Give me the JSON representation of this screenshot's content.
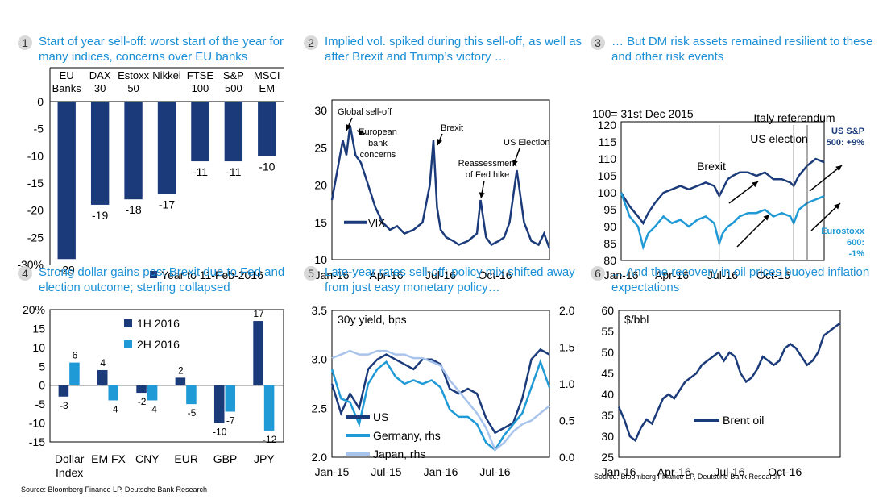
{
  "colors": {
    "dark": "#1b3a7a",
    "light": "#1f9ad6",
    "pale": "#a9c4ec",
    "title": "#1a8fd6"
  },
  "panels": [
    {
      "num": "1",
      "title": "Start of year sell-off: worst start of the year for many indices, concerns over EU banks"
    },
    {
      "num": "2",
      "title": "Implied vol. spiked during this sell-off, as well as after Brexit and Trump’s victory …"
    },
    {
      "num": "3",
      "title": "… But DM risk assets remained resilient to these and other risk events"
    },
    {
      "num": "4",
      "title": "Strong dollar gains post Brexit due to Fed and election outcome; sterling collapsed"
    },
    {
      "num": "5",
      "title": "Late-year rates sell-off:  policy mix shifted away from just easy monetary policy…"
    },
    {
      "num": "6",
      "title": "… And the recovery in oil prices buoyed inflation expectations"
    }
  ],
  "sources": {
    "left": "Source: Bloomberg Finance LP, Deutsche Bank Research",
    "right": "Source: Bloomberg Finance LP, Deutsche Bank Research"
  },
  "chart_data": [
    {
      "type": "bar",
      "categories": [
        [
          "EU",
          "Banks"
        ],
        [
          "DAX",
          "30"
        ],
        [
          "Estoxx",
          "50"
        ],
        [
          "Nikkei"
        ],
        [
          "FTSE",
          "100"
        ],
        [
          "S&P",
          "500"
        ],
        [
          "MSCI",
          "EM"
        ]
      ],
      "values": [
        -29,
        -19,
        -18,
        -17,
        -11,
        -11,
        -10
      ],
      "ylim": [
        -30,
        0
      ],
      "yticks": [
        0,
        -5,
        -10,
        -15,
        -20,
        -25,
        -30
      ],
      "ytick_labels": [
        "0",
        "-5",
        "-10",
        "-15",
        "-20",
        "-25",
        "-30%"
      ],
      "legend": "Year to 11-Feb-2016",
      "legend_position": "bottom-right"
    },
    {
      "type": "line",
      "ylim": [
        10,
        30
      ],
      "yticks": [
        10,
        15,
        20,
        25,
        30
      ],
      "xlim": [
        0,
        12
      ],
      "xticks": [
        0,
        3,
        6,
        9
      ],
      "xtick_labels": [
        "Jan-16",
        "Apr-16",
        "Jul-16",
        "Oct-16"
      ],
      "series": [
        {
          "name": "VIX",
          "x": [
            0,
            0.3,
            0.6,
            0.8,
            1.0,
            1.3,
            1.6,
            2.0,
            2.4,
            2.8,
            3.2,
            3.6,
            4.0,
            4.5,
            5.0,
            5.4,
            5.6,
            5.8,
            6.0,
            6.3,
            6.7,
            7.0,
            7.5,
            8.0,
            8.2,
            8.5,
            8.8,
            9.2,
            9.5,
            9.8,
            10.2,
            10.6,
            11.0,
            11.4,
            11.7,
            12.0
          ],
          "y": [
            18,
            22,
            26,
            24,
            28,
            24,
            23,
            20,
            17,
            15,
            14,
            14.5,
            13.5,
            14,
            15,
            20,
            26,
            17,
            14,
            13,
            12.5,
            12,
            12.5,
            13.5,
            18,
            13,
            12,
            12.5,
            13,
            15,
            22,
            15,
            12.5,
            12,
            13.5,
            11.5
          ]
        }
      ],
      "legend_position": "left-middle",
      "annotations": [
        "Global sell-off",
        "European bank concerns",
        "Brexit",
        "Reassessment of Fed hike",
        "US Election"
      ]
    },
    {
      "type": "line",
      "title": "100= 31st Dec 2015",
      "ylim": [
        80,
        120
      ],
      "yticks": [
        80,
        85,
        90,
        95,
        100,
        105,
        110,
        115,
        120
      ],
      "xlim": [
        0,
        12
      ],
      "xticks": [
        0,
        3,
        6,
        9
      ],
      "xtick_labels": [
        "Jan-16",
        "Apr-16",
        "Jul-16",
        "Oct-16"
      ],
      "series": [
        {
          "name": "US S&P 500: +9%",
          "x": [
            0,
            0.5,
            1.0,
            1.3,
            1.6,
            2.0,
            2.5,
            3.0,
            3.5,
            4.0,
            4.5,
            5.0,
            5.5,
            5.8,
            6.0,
            6.3,
            6.6,
            7.0,
            7.5,
            8.0,
            8.5,
            9.0,
            9.5,
            10.0,
            10.2,
            10.5,
            11.0,
            11.5,
            12.0
          ],
          "y": [
            100,
            96,
            93,
            91,
            94,
            97,
            100,
            101,
            102,
            101,
            102,
            103,
            102,
            99,
            101,
            104,
            105,
            106,
            106,
            105,
            106,
            104,
            104,
            103,
            102,
            105,
            108,
            110,
            109
          ]
        },
        {
          "name": "Eurostoxx 600: -1%",
          "x": [
            0,
            0.5,
            1.0,
            1.3,
            1.6,
            2.0,
            2.5,
            3.0,
            3.5,
            4.0,
            4.5,
            5.0,
            5.5,
            5.8,
            6.0,
            6.3,
            6.6,
            7.0,
            7.5,
            8.0,
            8.5,
            9.0,
            9.5,
            10.0,
            10.2,
            10.5,
            11.0,
            11.5,
            12.0
          ],
          "y": [
            100,
            93,
            90,
            84,
            88,
            90,
            93,
            91,
            92,
            90,
            92,
            93,
            91,
            85,
            88,
            90,
            91,
            93,
            94,
            94,
            95,
            93,
            94,
            93,
            91,
            95,
            97,
            98,
            99
          ]
        }
      ],
      "annotations": [
        "Brexit",
        "US election",
        "Italy referendum"
      ]
    },
    {
      "type": "bar",
      "categories": [
        [
          "Dollar",
          "Index"
        ],
        [
          "EM FX"
        ],
        [
          "CNY"
        ],
        [
          "EUR"
        ],
        [
          "GBP"
        ],
        [
          "JPY"
        ]
      ],
      "series": [
        {
          "name": "1H 2016",
          "values": [
            -3,
            4,
            -2,
            2,
            -10,
            17
          ]
        },
        {
          "name": "2H 2016",
          "values": [
            6,
            -4,
            -4,
            -5,
            -7,
            -12
          ]
        }
      ],
      "ylim": [
        -15,
        20
      ],
      "yticks": [
        20,
        15,
        10,
        5,
        0,
        -5,
        -10,
        -15
      ],
      "ytick_labels": [
        "20%",
        "15",
        "10",
        "5",
        "0",
        "-5",
        "-10",
        "-15"
      ],
      "legend_position": "top-left"
    },
    {
      "type": "line",
      "title": "30y yield, bps",
      "ylim": [
        2.0,
        3.5
      ],
      "yticks": [
        2.0,
        2.5,
        3.0,
        3.5
      ],
      "y2lim": [
        0.0,
        2.0
      ],
      "y2ticks": [
        0.0,
        0.5,
        1.0,
        1.5,
        2.0
      ],
      "xlim": [
        0,
        24
      ],
      "xticks": [
        0,
        6,
        12,
        18
      ],
      "xtick_labels": [
        "Jan-15",
        "Jul-15",
        "Jan-16",
        "Jul-16"
      ],
      "series": [
        {
          "name": "US",
          "axis": "left",
          "x": [
            0,
            1,
            2,
            3,
            4,
            5,
            6,
            7,
            8,
            9,
            10,
            11,
            12,
            13,
            14,
            15,
            16,
            17,
            18,
            19,
            20,
            21,
            22,
            23,
            24
          ],
          "y": [
            2.75,
            2.45,
            2.65,
            2.5,
            2.9,
            3.0,
            3.05,
            3.0,
            2.95,
            2.9,
            3.0,
            3.0,
            2.95,
            2.7,
            2.65,
            2.7,
            2.65,
            2.4,
            2.25,
            2.3,
            2.35,
            2.6,
            3.0,
            3.1,
            3.05
          ]
        },
        {
          "name": "Germany, rhs",
          "axis": "right",
          "x": [
            0,
            1,
            2,
            3,
            4,
            5,
            6,
            7,
            8,
            9,
            10,
            11,
            12,
            13,
            14,
            15,
            16,
            17,
            18,
            19,
            20,
            21,
            22,
            23,
            24
          ],
          "y": [
            1.2,
            0.8,
            0.75,
            0.45,
            1.0,
            1.2,
            1.3,
            1.1,
            1.0,
            1.05,
            1.0,
            1.05,
            0.95,
            0.65,
            0.55,
            0.55,
            0.45,
            0.2,
            0.1,
            0.3,
            0.45,
            0.6,
            0.95,
            1.3,
            0.95
          ]
        },
        {
          "name": "Japan, rhs",
          "axis": "right",
          "x": [
            0,
            1,
            2,
            3,
            4,
            5,
            6,
            7,
            8,
            9,
            10,
            11,
            12,
            13,
            14,
            15,
            16,
            17,
            18,
            19,
            20,
            21,
            22,
            23,
            24
          ],
          "y": [
            1.35,
            1.4,
            1.45,
            1.4,
            1.4,
            1.45,
            1.45,
            1.4,
            1.4,
            1.35,
            1.35,
            1.3,
            1.25,
            1.05,
            0.9,
            0.75,
            0.6,
            0.4,
            0.1,
            0.2,
            0.35,
            0.45,
            0.5,
            0.6,
            0.7
          ]
        }
      ],
      "legend_position": "bottom-left"
    },
    {
      "type": "line",
      "title": "$/bbl",
      "ylim": [
        25,
        60
      ],
      "yticks": [
        25,
        30,
        35,
        40,
        45,
        50,
        55,
        60
      ],
      "xlim": [
        0,
        12
      ],
      "xticks": [
        0,
        3,
        6,
        9
      ],
      "xtick_labels": [
        "Jan-16",
        "Apr-16",
        "Jul-16",
        "Oct-16"
      ],
      "series": [
        {
          "name": "Brent oil",
          "x": [
            0,
            0.3,
            0.6,
            0.9,
            1.2,
            1.5,
            1.8,
            2.1,
            2.4,
            2.7,
            3.0,
            3.3,
            3.6,
            3.9,
            4.2,
            4.5,
            4.8,
            5.1,
            5.4,
            5.7,
            6.0,
            6.3,
            6.6,
            6.9,
            7.2,
            7.5,
            7.8,
            8.1,
            8.4,
            8.7,
            9.0,
            9.3,
            9.6,
            9.9,
            10.2,
            10.5,
            10.8,
            11.1,
            11.4,
            11.7,
            12.0
          ],
          "y": [
            37,
            34,
            30,
            29,
            32,
            34,
            33,
            36,
            39,
            40,
            39,
            41,
            43,
            44,
            45,
            47,
            48,
            49,
            50,
            48,
            50,
            49,
            45,
            43,
            44,
            46,
            49,
            48,
            47,
            48,
            51,
            52,
            51,
            49,
            47,
            48,
            50,
            54,
            55,
            56,
            57
          ]
        }
      ],
      "legend_position": "bottom-center"
    }
  ]
}
